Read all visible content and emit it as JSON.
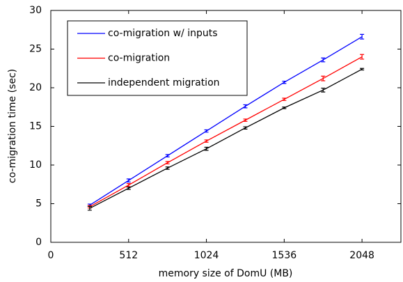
{
  "chart_data": {
    "type": "line",
    "x_label": "memory size of DomU (MB)",
    "y_label": "co-migration time (sec)",
    "x": [
      256,
      512,
      768,
      1024,
      1280,
      1536,
      1792,
      2048
    ],
    "series": [
      {
        "name": "co-migration w/ inputs",
        "color": "#0000ff",
        "values": [
          4.8,
          8.0,
          11.2,
          14.4,
          17.6,
          20.7,
          23.6,
          26.6
        ],
        "errors": [
          0.15,
          0.2,
          0.15,
          0.15,
          0.2,
          0.15,
          0.25,
          0.3
        ]
      },
      {
        "name": "co-migration",
        "color": "#ff0000",
        "values": [
          4.6,
          7.4,
          10.3,
          13.1,
          15.8,
          18.5,
          21.2,
          24.0
        ],
        "errors": [
          0.15,
          0.2,
          0.15,
          0.15,
          0.15,
          0.15,
          0.3,
          0.3
        ]
      },
      {
        "name": "independent migration",
        "color": "#000000",
        "values": [
          4.4,
          7.0,
          9.6,
          12.1,
          14.8,
          17.4,
          19.7,
          22.4
        ],
        "errors": [
          0.25,
          0.15,
          0.15,
          0.2,
          0.15,
          0.1,
          0.25,
          0.1
        ]
      }
    ],
    "xlim": [
      0,
      2304
    ],
    "xticks": [
      0,
      512,
      1024,
      1536,
      2048
    ],
    "ylim": [
      0,
      30
    ],
    "yticks": [
      0,
      5,
      10,
      15,
      20,
      25,
      30
    ],
    "legend": "upper-left",
    "grid": false
  }
}
